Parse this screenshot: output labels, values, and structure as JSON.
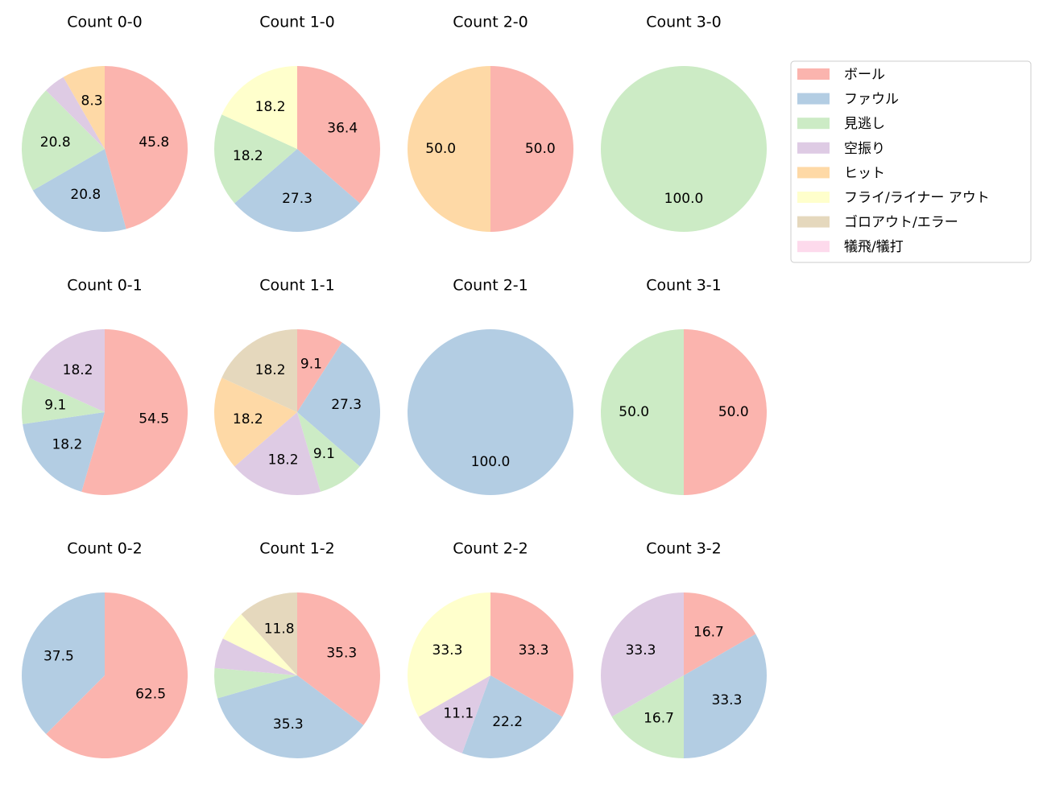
{
  "legend": {
    "labels": [
      "ボール",
      "ファウル",
      "見逃し",
      "空振り",
      "ヒット",
      "フライ/ライナー アウト",
      "ゴロアウト/エラー",
      "犠飛/犠打"
    ],
    "colors": [
      "#fbb4ae",
      "#b3cde3",
      "#ccebc5",
      "#decbe4",
      "#fed9a6",
      "#ffffcc",
      "#e5d8bd",
      "#fddaec"
    ]
  },
  "chart_data": [
    {
      "type": "pie",
      "title": "Count 0-0",
      "values": [
        45.8,
        20.8,
        20.8,
        4.2,
        8.3,
        0,
        0,
        0
      ],
      "value_labels": [
        "45.8",
        "20.8",
        "20.8",
        null,
        "8.3",
        null,
        null,
        null
      ]
    },
    {
      "type": "pie",
      "title": "Count 1-0",
      "values": [
        36.4,
        27.3,
        18.2,
        0,
        0,
        18.2,
        0,
        0
      ],
      "value_labels": [
        "36.4",
        "27.3",
        "18.2",
        null,
        null,
        "18.2",
        null,
        null
      ]
    },
    {
      "type": "pie",
      "title": "Count 2-0",
      "values": [
        50,
        0,
        0,
        0,
        50,
        0,
        0,
        0
      ],
      "value_labels": [
        "50.0",
        null,
        null,
        null,
        "50.0",
        null,
        null,
        null
      ]
    },
    {
      "type": "pie",
      "title": "Count 3-0",
      "values": [
        0,
        0,
        100,
        0,
        0,
        0,
        0,
        0
      ],
      "value_labels": [
        null,
        null,
        "100.0",
        null,
        null,
        null,
        null,
        null
      ]
    },
    {
      "type": "pie",
      "title": "Count 0-1",
      "values": [
        54.5,
        18.2,
        9.1,
        18.2,
        0,
        0,
        0,
        0
      ],
      "value_labels": [
        "54.5",
        "18.2",
        "9.1",
        "18.2",
        null,
        null,
        null,
        null
      ]
    },
    {
      "type": "pie",
      "title": "Count 1-1",
      "values": [
        9.1,
        27.3,
        9.1,
        18.2,
        18.2,
        0,
        18.2,
        0
      ],
      "value_labels": [
        "9.1",
        "27.3",
        "9.1",
        "18.2",
        "18.2",
        null,
        "18.2",
        null
      ]
    },
    {
      "type": "pie",
      "title": "Count 2-1",
      "values": [
        0,
        100,
        0,
        0,
        0,
        0,
        0,
        0
      ],
      "value_labels": [
        null,
        "100.0",
        null,
        null,
        null,
        null,
        null,
        null
      ]
    },
    {
      "type": "pie",
      "title": "Count 3-1",
      "values": [
        50,
        0,
        50,
        0,
        0,
        0,
        0,
        0
      ],
      "value_labels": [
        "50.0",
        null,
        "50.0",
        null,
        null,
        null,
        null,
        null
      ]
    },
    {
      "type": "pie",
      "title": "Count 0-2",
      "values": [
        62.5,
        37.5,
        0,
        0,
        0,
        0,
        0,
        0
      ],
      "value_labels": [
        "62.5",
        "37.5",
        null,
        null,
        null,
        null,
        null,
        null
      ]
    },
    {
      "type": "pie",
      "title": "Count 1-2",
      "values": [
        35.3,
        35.3,
        5.9,
        5.9,
        0,
        5.9,
        11.8,
        0
      ],
      "value_labels": [
        "35.3",
        "35.3",
        null,
        null,
        null,
        null,
        "11.8",
        null
      ]
    },
    {
      "type": "pie",
      "title": "Count 2-2",
      "values": [
        33.3,
        22.2,
        0,
        11.1,
        0,
        33.3,
        0,
        0
      ],
      "value_labels": [
        "33.3",
        "22.2",
        null,
        "11.1",
        null,
        "33.3",
        null,
        null
      ]
    },
    {
      "type": "pie",
      "title": "Count 3-2",
      "values": [
        16.7,
        33.3,
        16.7,
        33.3,
        0,
        0,
        0,
        0
      ],
      "value_labels": [
        "16.7",
        "33.3",
        "16.7",
        "33.3",
        null,
        null,
        null,
        null
      ]
    }
  ]
}
